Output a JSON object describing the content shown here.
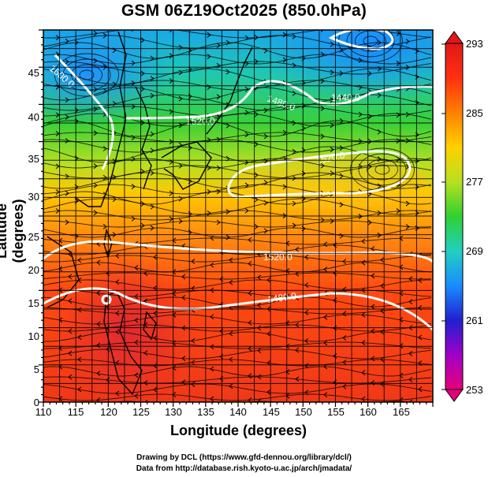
{
  "title": "GSM 06Z19Oct2025 (850.0hPa)",
  "axes": {
    "xlabel": "Longitude (degrees)",
    "ylabel": "Latitude  (degrees)",
    "xticks": [
      "110",
      "115",
      "120",
      "125",
      "130",
      "135",
      "140",
      "145",
      "150",
      "155",
      "160",
      "165"
    ],
    "yticks": [
      "0",
      "5",
      "10",
      "15",
      "20",
      "25",
      "30",
      "35",
      "40",
      "45"
    ],
    "xrange": [
      110,
      170
    ],
    "yrange": [
      0,
      50
    ]
  },
  "colorbar": {
    "ticks": [
      "293",
      "285",
      "277",
      "269",
      "261",
      "253"
    ],
    "range": [
      253,
      293
    ],
    "colors": [
      "#e8007a",
      "#a000c8",
      "#2020d0",
      "#1a8cff",
      "#20d0c0",
      "#30d030",
      "#b8e020",
      "#ffd000",
      "#ff8000",
      "#ff3010",
      "#e01818"
    ]
  },
  "contour_labels": [
    {
      "text": "1600.0",
      "lon": 115,
      "lat": 45
    },
    {
      "text": "1520.0",
      "lon": 131,
      "lat": 39.5
    },
    {
      "text": "1480.0",
      "lon": 145,
      "lat": 42.5
    },
    {
      "text": "1440.0",
      "lon": 153,
      "lat": 42.5
    },
    {
      "text": "1520.0",
      "lon": 156,
      "lat": 31.5
    },
    {
      "text": "1520.0",
      "lon": 145,
      "lat": 20
    },
    {
      "text": "1480.0",
      "lon": 144,
      "lat": 14
    }
  ],
  "credits": [
    "Drawing by DCL (https://www.gfd-dennou.org/library/dcl/)",
    "Data from http://database.rish.kyoto-u.ac.jp/arch/jmadata/"
  ]
}
